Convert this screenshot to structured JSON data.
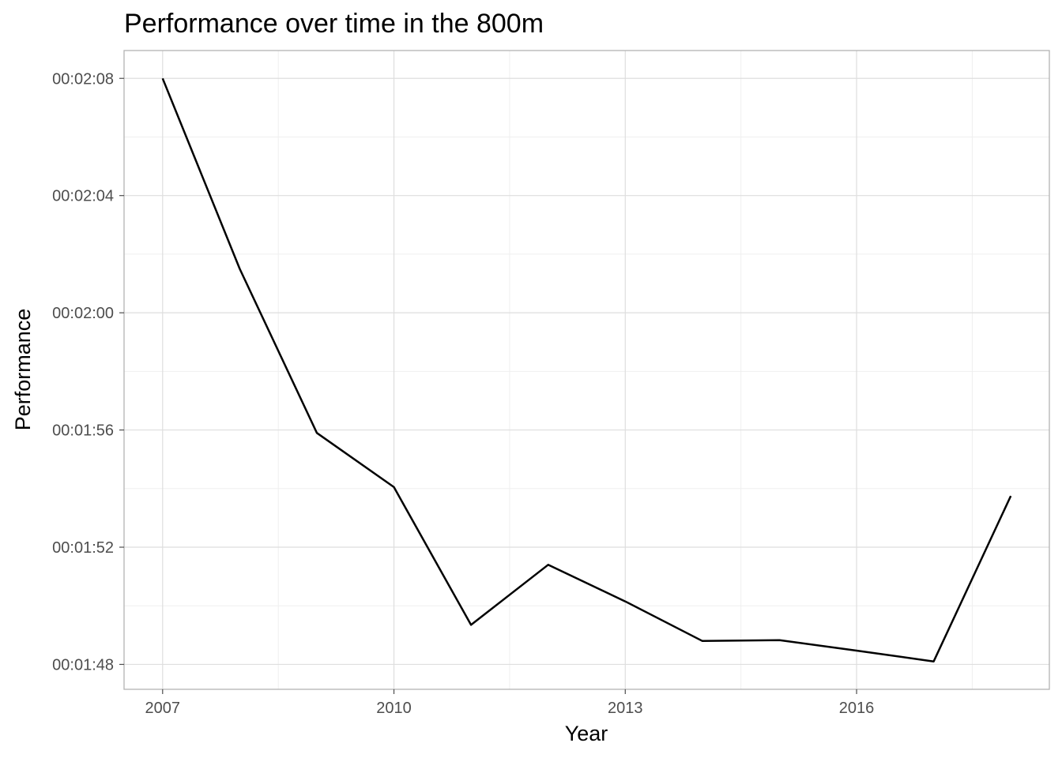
{
  "chart_data": {
    "type": "line",
    "title": "Performance over time in the 800m",
    "xlabel": "Year",
    "ylabel": "Performance",
    "x": [
      2007,
      2008,
      2009,
      2010,
      2011,
      2012,
      2013,
      2014,
      2015,
      2016,
      2017,
      2018
    ],
    "series": [
      {
        "values": [
          "00:02:08",
          "00:02:01.5",
          "00:01:55.9",
          "00:01:54.05",
          "00:01:49.35",
          "00:01:51.4",
          "00:01:50.15",
          "00:01:48.8",
          "00:01:48.83",
          "00:01:48.47",
          "00:01:48.1",
          "00:01:53.75"
        ]
      }
    ],
    "x_ticks": [
      "2007",
      "2010",
      "2013",
      "2016"
    ],
    "y_ticks": [
      "00:02:08",
      "00:02:04",
      "00:02:00",
      "00:01:56",
      "00:01:52",
      "00:01:48"
    ],
    "xlim": [
      2006.5,
      2018.5
    ],
    "ylim": [
      "00:01:47.15",
      "00:02:08.95"
    ],
    "grid": true,
    "line_color": "#000000",
    "panel_border_color": "#b3b3b3",
    "grid_major_color": "#dedede",
    "grid_minor_color": "#efefef"
  }
}
